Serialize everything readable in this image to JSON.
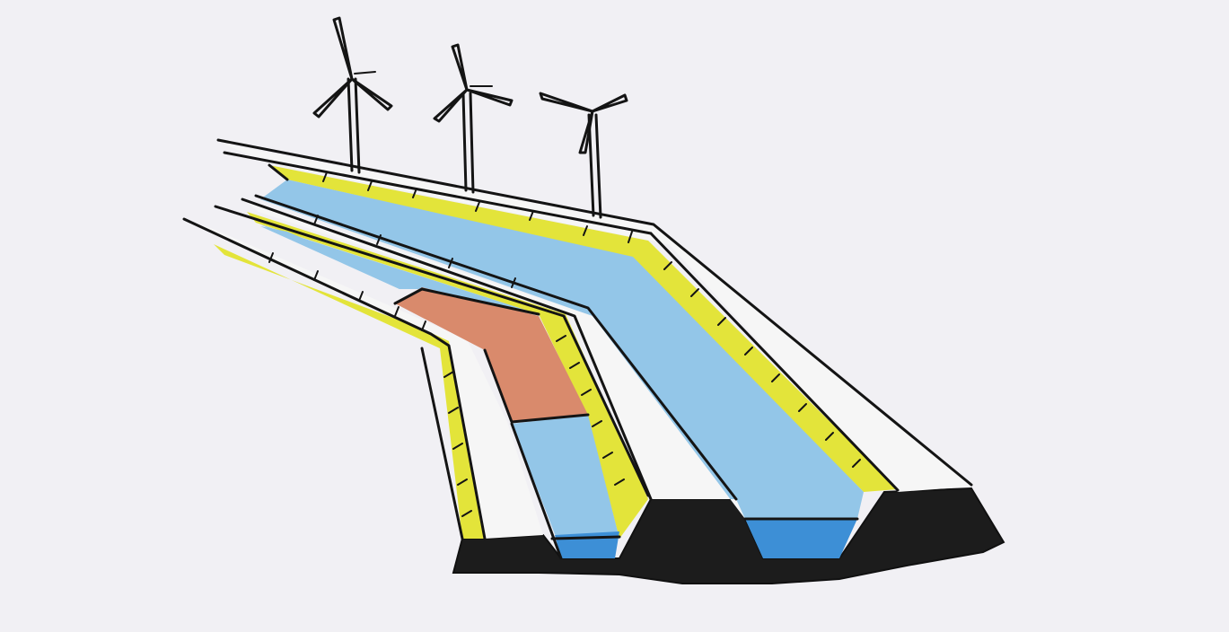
{
  "colors": {
    "paper": "#f1f0f4",
    "water_light": "#93c6e8",
    "water_deep": "#3d8fd6",
    "embankment_yellow": "#e3e43a",
    "lining_red": "#d98a6c",
    "earth_black": "#1c1c1c",
    "ink": "#141414",
    "bank_white": "#f6f6f6"
  },
  "scene": {
    "wind_turbine_count": 3,
    "channel_count": 2
  }
}
